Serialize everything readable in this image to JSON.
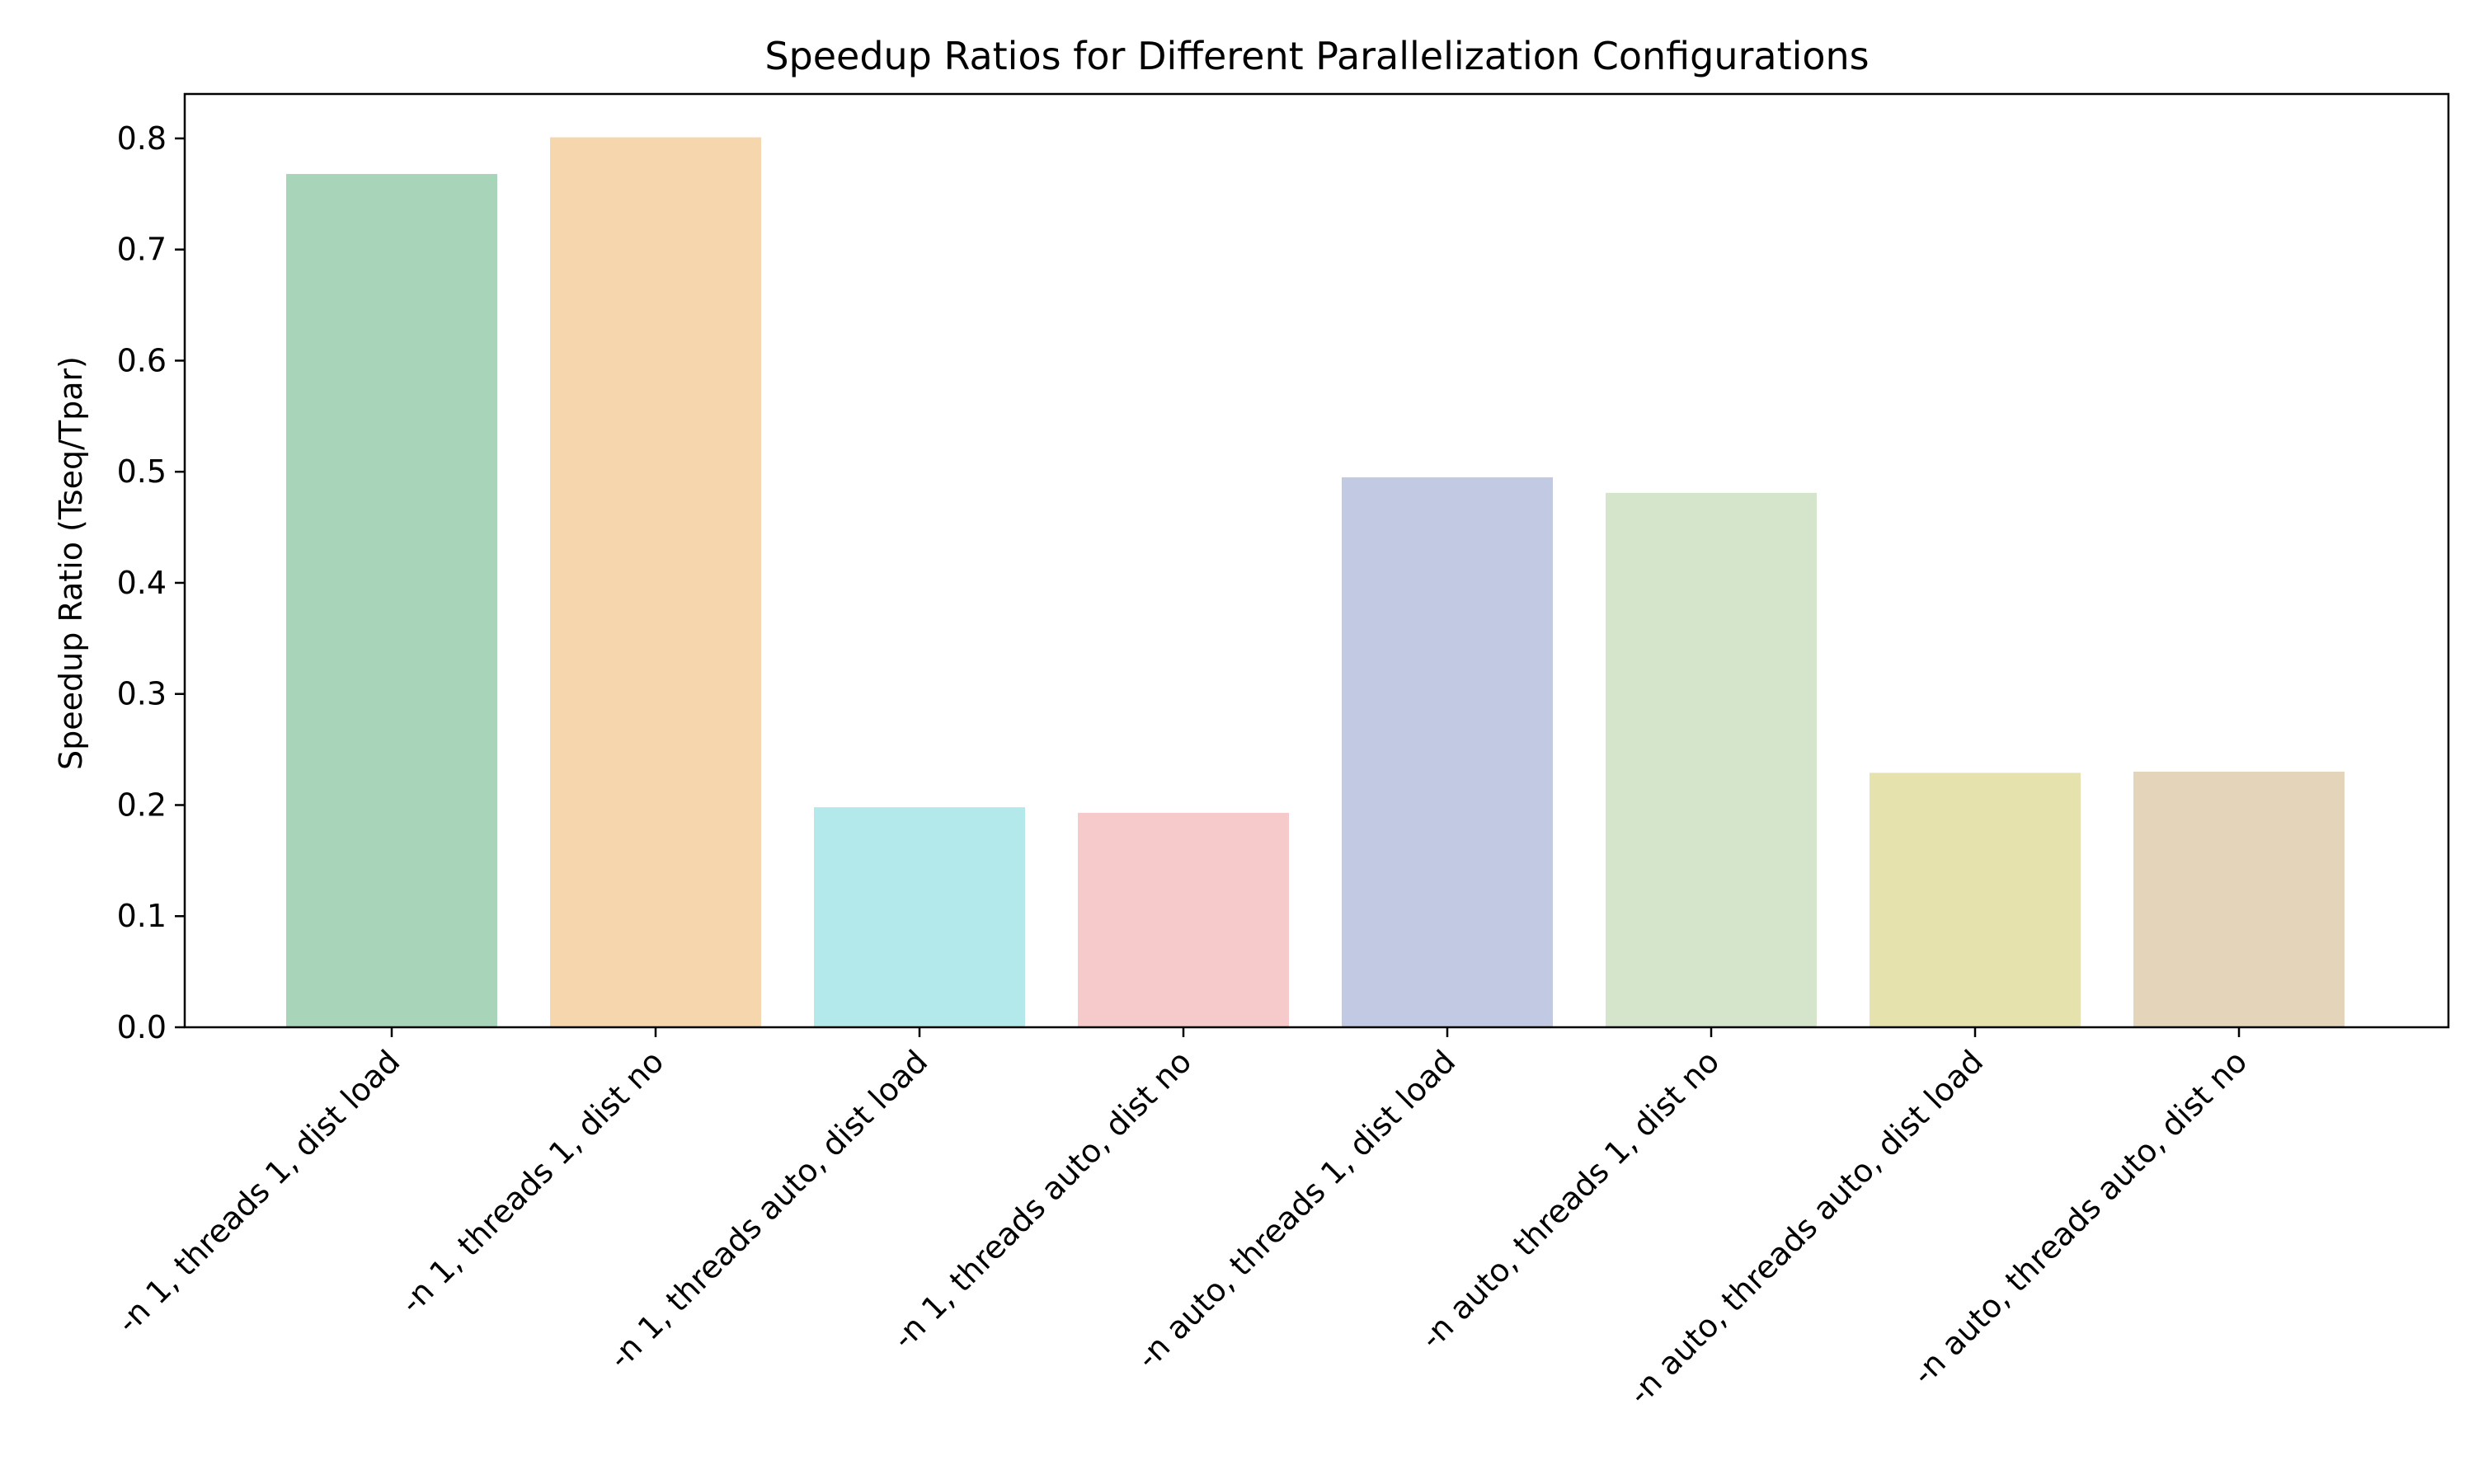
{
  "chart_data": {
    "type": "bar",
    "title": "Speedup Ratios for Different Parallelization Configurations",
    "xlabel": "",
    "ylabel": "Speedup Ratio (Tseq/Tpar)",
    "categories": [
      "-n 1, threads 1, dist load",
      "-n 1, threads 1, dist no",
      "-n 1, threads auto, dist load",
      "-n 1, threads auto, dist no",
      "-n auto, threads 1, dist load",
      "-n auto, threads 1, dist no",
      "-n auto, threads auto, dist load",
      "-n auto, threads auto, dist no"
    ],
    "values": [
      0.768,
      0.801,
      0.198,
      0.193,
      0.495,
      0.481,
      0.229,
      0.23
    ],
    "colors": [
      "#a8d5ba",
      "#f6d6ad",
      "#b3e9ea",
      "#f6c9ca",
      "#c2c9e3",
      "#d4e5cc",
      "#e5e2ae",
      "#e3d4ba"
    ],
    "ylim": [
      0,
      0.84
    ],
    "yticks": [
      0.0,
      0.1,
      0.2,
      0.3,
      0.4,
      0.5,
      0.6,
      0.7,
      0.8
    ],
    "ytick_labels": [
      "0.0",
      "0.1",
      "0.2",
      "0.3",
      "0.4",
      "0.5",
      "0.6",
      "0.7",
      "0.8"
    ],
    "grid": false,
    "legend": "none"
  }
}
